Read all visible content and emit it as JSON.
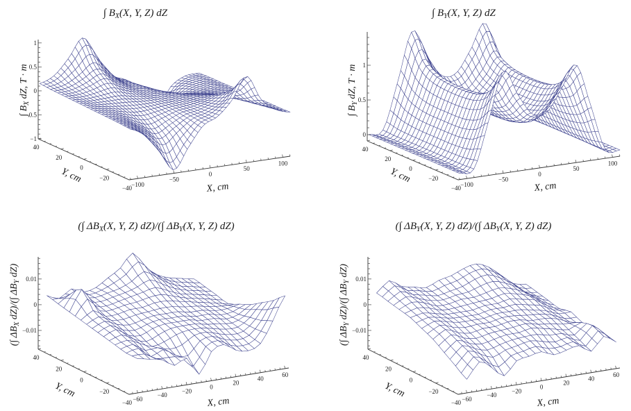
{
  "figure": {
    "mesh_color": "#3f448f",
    "background": "#ffffff"
  },
  "chart_data": [
    {
      "type": "surface",
      "id": "bx",
      "title": "∫ B_X(X, Y, Z) dZ",
      "title_parts": {
        "pre": "∫ B",
        "sub": "X",
        "post": "(X, Y, Z) dZ"
      },
      "zlabel": "∫ B_X dZ, T · m",
      "zlabel_parts": {
        "pre": "∫ B",
        "sub": "X",
        "post": " dZ, T · m"
      },
      "xlabel": "X, cm",
      "ylabel": "Y, cm",
      "xlim": [
        -112,
        110
      ],
      "ylim": [
        -40,
        40
      ],
      "zlim": [
        -1,
        1.07
      ],
      "x_ticks": [
        -100,
        -50,
        0,
        50,
        100
      ],
      "x_tick_labels": [
        "−100",
        "−50",
        "0",
        "50",
        "100"
      ],
      "y_ticks": [
        40,
        20,
        0,
        -20,
        -40
      ],
      "y_tick_labels": [
        "40",
        "20",
        "0",
        "−20",
        "−40"
      ],
      "z_ticks": [
        1,
        0.5,
        0,
        -0.5,
        -1
      ],
      "z_tick_labels": [
        "1",
        "0.5",
        "0",
        "−0.5",
        "−1"
      ],
      "grid_x": [
        -110,
        -90,
        -70,
        -50,
        -30,
        -10,
        10,
        30,
        50,
        70,
        90,
        110
      ],
      "grid_y": [
        40,
        30,
        20,
        10,
        0,
        -10,
        -20,
        -30,
        -40
      ],
      "z": [
        [
          0.15,
          0.27,
          0.59,
          0.97,
          0.5,
          0.1,
          -0.05,
          -0.35,
          -0.8,
          -0.33,
          -0.14,
          -0.12
        ],
        [
          0.13,
          0.18,
          0.34,
          0.54,
          0.28,
          0.06,
          -0.03,
          -0.19,
          -0.44,
          -0.2,
          -0.1,
          -0.11
        ],
        [
          0.12,
          0.13,
          0.21,
          0.31,
          0.15,
          0.03,
          -0.02,
          -0.11,
          -0.24,
          -0.12,
          -0.08,
          -0.11
        ],
        [
          0.11,
          0.09,
          0.11,
          0.13,
          0.06,
          0.01,
          -0.01,
          -0.04,
          -0.1,
          -0.07,
          -0.07,
          -0.1
        ],
        [
          0.1,
          0.07,
          0.04,
          0.02,
          0.0,
          0.0,
          0.0,
          0.0,
          0.0,
          -0.03,
          -0.06,
          -0.1
        ],
        [
          0.09,
          0.05,
          -0.03,
          -0.09,
          -0.06,
          -0.01,
          0.01,
          0.04,
          0.1,
          0.01,
          -0.05,
          -0.1
        ],
        [
          0.08,
          0.01,
          -0.13,
          -0.27,
          -0.15,
          -0.03,
          0.02,
          0.11,
          0.24,
          0.06,
          -0.04,
          -0.09
        ],
        [
          0.07,
          -0.04,
          -0.26,
          -0.5,
          -0.28,
          -0.06,
          0.03,
          0.19,
          0.44,
          0.14,
          -0.02,
          -0.09
        ],
        [
          0.05,
          -0.13,
          -0.51,
          -0.93,
          -0.5,
          -0.1,
          0.05,
          0.35,
          0.8,
          0.27,
          0.02,
          -0.08
        ]
      ],
      "mesh_lines": [
        46,
        26
      ]
    },
    {
      "type": "surface",
      "id": "by",
      "title": "∫ B_Y(X, Y, Z) dZ",
      "title_parts": {
        "pre": "∫ B",
        "sub": "Y",
        "post": "(X, Y, Z) dZ"
      },
      "zlabel": "∫ B_Y dZ, T · m",
      "zlabel_parts": {
        "pre": "∫ B",
        "sub": "Y",
        "post": " dZ, T · m"
      },
      "xlabel": "X, cm",
      "ylabel": "Y, cm",
      "xlim": [
        -112,
        110
      ],
      "ylim": [
        -40,
        40
      ],
      "zlim": [
        -0.09,
        1.48
      ],
      "x_ticks": [
        -100,
        -50,
        0,
        50,
        100
      ],
      "x_tick_labels": [
        "−100",
        "−50",
        "0",
        "50",
        "100"
      ],
      "y_ticks": [
        40,
        20,
        0,
        -20,
        -40
      ],
      "y_tick_labels": [
        "40",
        "20",
        "0",
        "−20",
        "−40"
      ],
      "z_ticks": [
        1,
        0.5,
        0
      ],
      "z_tick_labels": [
        "1",
        "0.5",
        "0"
      ],
      "grid_x": [
        -110,
        -90,
        -70,
        -50,
        -30,
        -10,
        10,
        30,
        50,
        70,
        90,
        110
      ],
      "grid_y": [
        40,
        30,
        20,
        10,
        0,
        -10,
        -20,
        -30,
        -40
      ],
      "z": [
        [
          0.0,
          0.04,
          0.7,
          1.4,
          1.01,
          0.7,
          0.7,
          1.01,
          1.36,
          0.7,
          0.04,
          0.0
        ],
        [
          0.0,
          0.03,
          0.53,
          1.05,
          0.76,
          0.53,
          0.53,
          0.76,
          1.02,
          0.53,
          0.03,
          0.0
        ],
        [
          0.0,
          0.03,
          0.46,
          0.92,
          0.66,
          0.46,
          0.46,
          0.66,
          0.9,
          0.46,
          0.03,
          0.0
        ],
        [
          0.0,
          0.03,
          0.44,
          0.88,
          0.63,
          0.44,
          0.44,
          0.63,
          0.86,
          0.44,
          0.03,
          0.0
        ],
        [
          0.0,
          0.03,
          0.44,
          0.87,
          0.63,
          0.44,
          0.44,
          0.63,
          0.85,
          0.44,
          0.03,
          0.0
        ],
        [
          0.0,
          0.03,
          0.44,
          0.88,
          0.63,
          0.44,
          0.44,
          0.63,
          0.86,
          0.44,
          0.03,
          0.0
        ],
        [
          0.0,
          0.03,
          0.46,
          0.92,
          0.66,
          0.46,
          0.46,
          0.66,
          0.9,
          0.46,
          0.03,
          0.0
        ],
        [
          0.0,
          0.03,
          0.53,
          1.05,
          0.76,
          0.53,
          0.53,
          0.76,
          1.02,
          0.53,
          0.03,
          0.0
        ],
        [
          0.0,
          0.04,
          0.7,
          1.38,
          1.01,
          0.7,
          0.7,
          1.01,
          1.32,
          0.7,
          0.04,
          0.0
        ]
      ],
      "mesh_lines": [
        46,
        26
      ]
    },
    {
      "type": "surface",
      "id": "dbx-ratio",
      "title": "(∫ ΔB_X(X, Y, Z) dZ)/(∫ ΔB_Y(X, Y, Z) dZ)",
      "title_parts": {
        "pre": "(∫ ΔB",
        "sub": "X",
        "mid": "(X, Y, Z) dZ)/(∫ ΔB",
        "sub2": "Y",
        "post": "(X, Y, Z) dZ)"
      },
      "zlabel": "(∫ ΔB_X dZ)/(∫ ΔB_Y dZ)",
      "zlabel_parts": {
        "pre": "(∫ ΔB",
        "sub": "X",
        "mid": " dZ)/(∫ ΔB",
        "sub2": "Y",
        "post": " dZ)"
      },
      "xlabel": "X, cm",
      "ylabel": "Y, cm",
      "xlim": [
        -67,
        63
      ],
      "ylim": [
        -40,
        40
      ],
      "zlim": [
        -0.0173,
        0.0186
      ],
      "x_ticks": [
        -60,
        -40,
        -20,
        0,
        20,
        40,
        60
      ],
      "x_tick_labels": [
        "−60",
        "−40",
        "−20",
        "0",
        "20",
        "40",
        "60"
      ],
      "y_ticks": [
        40,
        20,
        0,
        -20,
        -40
      ],
      "y_tick_labels": [
        "40",
        "20",
        "0",
        "−20",
        "−40"
      ],
      "z_ticks": [
        0.01,
        0,
        -0.01
      ],
      "z_tick_labels": [
        "0.01",
        "0",
        "−0.01"
      ],
      "grid_x": [
        -60,
        -50,
        -40,
        -30,
        -20,
        -10,
        0,
        10,
        20,
        30,
        40,
        50,
        60
      ],
      "grid_y": [
        40,
        30,
        20,
        10,
        0,
        -10,
        -20,
        -30,
        -40
      ],
      "z": [
        [
          0.003,
          0.001,
          0.004,
          0.002,
          0.003,
          0.006,
          0.009,
          0.014,
          0.008,
          0.004,
          0.002,
          0.001,
          0.0
        ],
        [
          0.002,
          0.005,
          0.003,
          0.002,
          0.003,
          0.004,
          0.006,
          0.009,
          0.006,
          0.003,
          0.001,
          0.0,
          -0.001
        ],
        [
          0.001,
          0.009,
          0.002,
          0.001,
          0.002,
          0.003,
          0.004,
          0.005,
          0.003,
          0.001,
          0.0,
          -0.001,
          -0.002
        ],
        [
          0.0,
          0.003,
          0.0,
          0.0,
          0.001,
          0.001,
          0.002,
          0.002,
          0.001,
          0.0,
          -0.001,
          -0.002,
          -0.003
        ],
        [
          -0.001,
          0.001,
          -0.001,
          -0.002,
          -0.001,
          0.0,
          0.0,
          0.0,
          -0.001,
          -0.001,
          -0.002,
          -0.002,
          -0.001
        ],
        [
          -0.002,
          0.0,
          -0.003,
          -0.004,
          -0.002,
          -0.001,
          -0.001,
          -0.001,
          -0.002,
          -0.002,
          -0.003,
          -0.002,
          0.001
        ],
        [
          -0.003,
          -0.002,
          -0.004,
          -0.006,
          -0.005,
          -0.003,
          -0.002,
          -0.002,
          -0.003,
          -0.004,
          -0.004,
          -0.001,
          0.004
        ],
        [
          -0.004,
          -0.003,
          -0.007,
          -0.005,
          -0.008,
          -0.009,
          -0.004,
          -0.003,
          -0.005,
          -0.006,
          -0.005,
          0.0,
          0.007
        ],
        [
          -0.004,
          -0.005,
          -0.006,
          -0.009,
          -0.007,
          -0.014,
          -0.006,
          -0.004,
          -0.007,
          -0.008,
          -0.006,
          0.002,
          0.011
        ]
      ],
      "mesh_lines": [
        25,
        17
      ]
    },
    {
      "type": "surface",
      "id": "dby-ratio",
      "title": "(∫ ΔB_Y(X, Y, Z) dZ)/(∫ ΔB_Y(X, Y, Z) dZ)",
      "title_parts": {
        "pre": "(∫ ΔB",
        "sub": "Y",
        "mid": "(X, Y, Z) dZ)/(∫ ΔB",
        "sub2": "Y",
        "post": "(X, Y, Z) dZ)"
      },
      "zlabel": "(∫ ΔB_Y dZ)/(∫ ΔB_Y dZ)",
      "zlabel_parts": {
        "pre": "(∫ ΔB",
        "sub": "Y",
        "mid": " dZ)/(∫ ΔB",
        "sub2": "Y",
        "post": " dZ)"
      },
      "xlabel": "X, cm",
      "ylabel": "Y, cm",
      "xlim": [
        -67,
        63
      ],
      "ylim": [
        -40,
        40
      ],
      "zlim": [
        -0.0173,
        0.0186
      ],
      "x_ticks": [
        -60,
        -40,
        -20,
        0,
        20,
        40,
        60
      ],
      "x_tick_labels": [
        "−60",
        "−40",
        "−20",
        "0",
        "20",
        "40",
        "60"
      ],
      "y_ticks": [
        40,
        20,
        0,
        -20,
        -40
      ],
      "y_tick_labels": [
        "40",
        "20",
        "0",
        "−20",
        "−40"
      ],
      "z_ticks": [
        0.01,
        0,
        -0.01
      ],
      "z_tick_labels": [
        "0.01",
        "0",
        "−0.01"
      ],
      "grid_x": [
        -60,
        -50,
        -40,
        -30,
        -20,
        -10,
        0,
        10,
        20,
        30,
        40,
        50,
        60
      ],
      "grid_y": [
        40,
        30,
        20,
        10,
        0,
        -10,
        -20,
        -30,
        -40
      ],
      "z": [
        [
          0.004,
          0.008,
          0.005,
          0.004,
          0.003,
          0.005,
          0.006,
          0.008,
          0.009,
          0.007,
          0.003,
          -0.001,
          -0.002
        ],
        [
          0.003,
          0.006,
          0.004,
          0.003,
          0.002,
          0.003,
          0.004,
          0.006,
          0.007,
          0.005,
          0.002,
          -0.002,
          -0.003
        ],
        [
          0.002,
          0.004,
          0.003,
          0.001,
          0.001,
          0.002,
          0.002,
          0.003,
          0.004,
          0.003,
          0.001,
          -0.002,
          -0.004
        ],
        [
          0.001,
          0.002,
          0.001,
          0.0,
          0.0,
          0.0,
          0.001,
          0.001,
          0.002,
          0.001,
          0.0,
          -0.003,
          -0.005
        ],
        [
          -0.001,
          0.001,
          0.0,
          -0.001,
          -0.001,
          -0.001,
          0.0,
          0.0,
          0.0,
          -0.001,
          -0.002,
          -0.004,
          -0.004
        ],
        [
          -0.003,
          0.0,
          -0.002,
          -0.003,
          -0.002,
          -0.002,
          -0.001,
          -0.001,
          -0.002,
          -0.002,
          -0.003,
          -0.005,
          -0.006
        ],
        [
          -0.006,
          -0.002,
          -0.004,
          -0.005,
          -0.004,
          -0.003,
          -0.003,
          -0.002,
          -0.003,
          -0.004,
          -0.005,
          -0.003,
          -0.005
        ],
        [
          -0.009,
          -0.004,
          -0.006,
          -0.008,
          -0.006,
          -0.005,
          -0.004,
          -0.005,
          -0.006,
          -0.005,
          -0.007,
          -0.002,
          -0.006
        ],
        [
          -0.012,
          -0.006,
          -0.009,
          -0.013,
          -0.008,
          -0.007,
          -0.006,
          -0.008,
          -0.007,
          -0.006,
          -0.009,
          -0.004,
          -0.007
        ]
      ],
      "mesh_lines": [
        25,
        17
      ]
    }
  ]
}
